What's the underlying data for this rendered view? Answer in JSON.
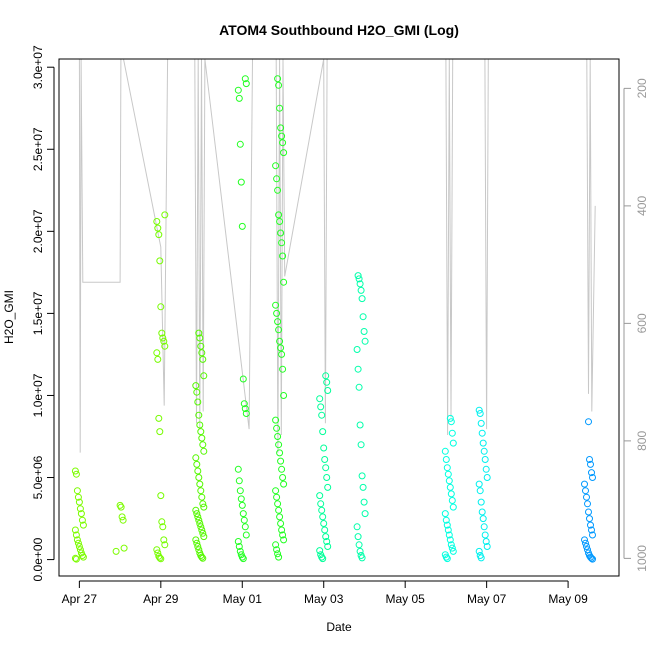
{
  "chart_data": {
    "type": "scatter",
    "title": "ATOM4 Southbound H2O_GMI (Log)",
    "xlabel": "Date",
    "ylabel": "H2O_GMI",
    "x_axis": {
      "type": "date",
      "range": [
        "2016-04-26T12:00",
        "2016-05-10T06:00"
      ],
      "ticks": [
        {
          "date": "2016-04-27",
          "label": "Apr 27"
        },
        {
          "date": "2016-04-29",
          "label": "Apr 29"
        },
        {
          "date": "2016-05-01",
          "label": "May 01"
        },
        {
          "date": "2016-05-03",
          "label": "May 03"
        },
        {
          "date": "2016-05-05",
          "label": "May 05"
        },
        {
          "date": "2016-05-07",
          "label": "May 07"
        },
        {
          "date": "2016-05-09",
          "label": "May 09"
        }
      ]
    },
    "y_axis": {
      "range": [
        -1000000,
        30500000
      ],
      "ticks": [
        {
          "value": 0,
          "label": "0.0e+00"
        },
        {
          "value": 5000000,
          "label": "5.0e+06"
        },
        {
          "value": 10000000,
          "label": "1.0e+07"
        },
        {
          "value": 15000000,
          "label": "1.5e+07"
        },
        {
          "value": 20000000,
          "label": "2.0e+07"
        },
        {
          "value": 25000000,
          "label": "2.5e+07"
        },
        {
          "value": 30000000,
          "label": "3.0e+07"
        }
      ]
    },
    "y2_axis": {
      "description": "secondary axis, inverted (pressure)",
      "range": [
        1030,
        150
      ],
      "ticks": [
        {
          "value": 200,
          "label": "200"
        },
        {
          "value": 400,
          "label": "400"
        },
        {
          "value": 600,
          "label": "600"
        },
        {
          "value": 800,
          "label": "800"
        },
        {
          "value": 1000,
          "label": "1000"
        }
      ],
      "color": "#999999"
    },
    "marker": "open-circle",
    "color_scale": [
      "#7cfc00",
      "#00ff33",
      "#00ffcc",
      "#00e5ff",
      "#0099ff"
    ],
    "clusters": [
      {
        "date": "2016-04-27T00:00",
        "color": "#7cfc00",
        "values": [
          5400000,
          5200000,
          4200000,
          3800000,
          3500000,
          3100000,
          2800000,
          2400000,
          2100000,
          1800000,
          1500000,
          1200000,
          1000000,
          800000,
          600000,
          400000,
          250000,
          150000,
          80000,
          30000
        ]
      },
      {
        "date": "2016-04-28T00:00",
        "color": "#7cfc00",
        "values": [
          3300000,
          3200000,
          2600000,
          2400000,
          700000,
          500000
        ]
      },
      {
        "date": "2016-04-29T00:00",
        "color": "#77fc00",
        "values": [
          21000000,
          20600000,
          20200000,
          19800000,
          18200000,
          15400000,
          13800000,
          13500000,
          13300000,
          13000000,
          12600000,
          12200000,
          8600000,
          7800000,
          3900000,
          2300000,
          2000000,
          1200000,
          900000,
          600000,
          400000,
          200000,
          100000,
          50000
        ]
      },
      {
        "date": "2016-04-29T23:00",
        "color": "#55f800",
        "values": [
          13800000,
          13500000,
          13000000,
          12600000,
          12200000,
          11200000,
          10600000,
          10200000,
          9600000,
          8800000,
          8200000,
          7800000,
          7400000,
          7000000,
          6600000,
          6200000,
          5800000,
          5400000,
          5000000,
          4600000,
          4200000,
          3800000,
          3400000,
          3200000,
          3000000,
          2800000,
          2600000,
          2400000,
          2200000,
          2000000,
          1800000,
          1600000,
          1400000,
          1200000,
          1000000,
          800000,
          600000,
          400000,
          250000,
          150000,
          80000
        ]
      },
      {
        "date": "2016-05-01T00:00",
        "color": "#22ff22",
        "values": [
          29300000,
          29000000,
          28600000,
          28100000,
          25300000,
          23000000,
          20300000,
          11000000,
          9500000,
          9200000,
          8900000,
          5500000,
          4800000,
          4200000,
          3700000,
          3300000,
          2800000,
          2400000,
          2000000,
          1500000,
          1100000,
          800000,
          500000,
          300000,
          150000,
          60000
        ]
      },
      {
        "date": "2016-05-01T22:00",
        "color": "#22ff22",
        "values": [
          29300000,
          28900000,
          27500000,
          26300000,
          25800000,
          25400000,
          24800000,
          24000000,
          23200000,
          22500000,
          21000000,
          20600000,
          19900000,
          19300000,
          18500000,
          16900000,
          15500000,
          15000000,
          14500000,
          14000000,
          13300000,
          12900000,
          12500000,
          11600000,
          10000000,
          8500000,
          8000000,
          7500000,
          7000000,
          6500000,
          6000000,
          5500000,
          5000000,
          4600000,
          4200000,
          3800000,
          3400000,
          3000000,
          2600000,
          2200000,
          1800000,
          1500000,
          1200000,
          900000,
          600000,
          350000,
          150000
        ]
      },
      {
        "date": "2016-05-03T00:00",
        "color": "#00ff99",
        "values": [
          11200000,
          10800000,
          10300000,
          9800000,
          9300000,
          8800000,
          7800000,
          6800000,
          6100000,
          5600000,
          5000000,
          4400000,
          3900000,
          3400000,
          3000000,
          2600000,
          2200000,
          1800000,
          1400000,
          1100000,
          800000,
          550000,
          300000,
          150000,
          60000
        ]
      },
      {
        "date": "2016-05-03T22:00",
        "color": "#00ffaa",
        "values": [
          17300000,
          17100000,
          16800000,
          16400000,
          15900000,
          14800000,
          13900000,
          13300000,
          12800000,
          11600000,
          10500000,
          8200000,
          7000000,
          5100000,
          4400000,
          3500000,
          2800000,
          2000000,
          1400000,
          900000,
          500000,
          250000,
          100000
        ]
      },
      {
        "date": "2016-05-06T02:00",
        "color": "#00ffe0",
        "values": [
          8600000,
          8400000,
          7700000,
          7100000,
          6600000,
          6100000,
          5600000,
          5200000,
          4800000,
          4400000,
          4000000,
          3600000,
          3200000,
          2800000,
          2400000,
          2100000,
          1800000,
          1500000,
          1200000,
          900000,
          700000,
          500000,
          300000,
          150000,
          60000
        ]
      },
      {
        "date": "2016-05-06T22:00",
        "color": "#00f0ee",
        "values": [
          9100000,
          8900000,
          8300000,
          7700000,
          7100000,
          6600000,
          6100000,
          5500000,
          5000000,
          4600000,
          4200000,
          3500000,
          2900000,
          2500000,
          2000000,
          1500000,
          1100000,
          800000,
          500000,
          250000,
          100000
        ]
      },
      {
        "date": "2016-05-09T12:00",
        "color": "#0099ff",
        "values": [
          8400000,
          6100000,
          5800000,
          5300000,
          5000000,
          4600000,
          4200000,
          3800000,
          3400000,
          2900000,
          2500000,
          2100000,
          1800000,
          1500000,
          1200000,
          1000000,
          800000,
          600000,
          400000,
          250000,
          150000,
          80000,
          30000
        ]
      }
    ],
    "pressure_trace": {
      "color": "#c8c8c8",
      "description": "grey line plotted against the inverted secondary (pressure) axis",
      "points": [
        [
          "2016-04-27T00:00",
          150
        ],
        [
          "2016-04-27T00:30",
          820
        ],
        [
          "2016-04-27T01:00",
          150
        ],
        [
          "2016-04-27T02:00",
          530
        ],
        [
          "2016-04-28T00:00",
          530
        ],
        [
          "2016-04-28T00:30",
          150
        ],
        [
          "2016-04-28T02:00",
          150
        ],
        [
          "2016-04-29T00:00",
          470
        ],
        [
          "2016-04-29T02:00",
          740
        ],
        [
          "2016-04-29T04:00",
          150
        ],
        [
          "2016-04-29T20:00",
          150
        ],
        [
          "2016-04-29T21:00",
          770
        ],
        [
          "2016-04-29T22:00",
          150
        ],
        [
          "2016-04-29T23:00",
          780
        ],
        [
          "2016-04-30T00:00",
          150
        ],
        [
          "2016-04-30T01:00",
          750
        ],
        [
          "2016-04-30T02:00",
          150
        ],
        [
          "2016-05-01T04:00",
          780
        ],
        [
          "2016-05-01T06:00",
          150
        ],
        [
          "2016-05-01T20:00",
          150
        ],
        [
          "2016-05-01T21:00",
          820
        ],
        [
          "2016-05-01T22:00",
          150
        ],
        [
          "2016-05-01T23:00",
          790
        ],
        [
          "2016-05-02T00:00",
          150
        ],
        [
          "2016-05-02T01:00",
          520
        ],
        [
          "2016-05-03T00:00",
          150
        ],
        [
          "2016-05-03T01:00",
          770
        ],
        [
          "2016-05-03T02:00",
          150
        ],
        [
          "2016-05-03T06:00",
          150
        ],
        [
          "2016-05-03T12:00",
          150
        ],
        [
          "2016-05-06T00:00",
          150
        ],
        [
          "2016-05-06T01:00",
          790
        ],
        [
          "2016-05-06T02:00",
          150
        ],
        [
          "2016-05-06T03:00",
          760
        ],
        [
          "2016-05-06T04:00",
          150
        ],
        [
          "2016-05-06T23:00",
          150
        ],
        [
          "2016-05-07T00:00",
          780
        ],
        [
          "2016-05-07T01:00",
          150
        ],
        [
          "2016-05-09T11:00",
          150
        ],
        [
          "2016-05-09T12:00",
          720
        ],
        [
          "2016-05-09T13:00",
          150
        ],
        [
          "2016-05-09T14:00",
          750
        ],
        [
          "2016-05-09T16:00",
          400
        ]
      ]
    },
    "grid": false,
    "legend": "none"
  }
}
